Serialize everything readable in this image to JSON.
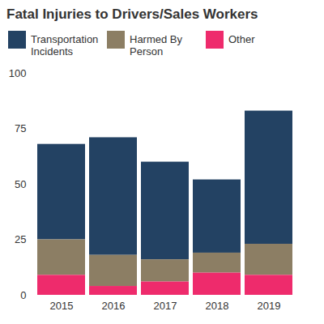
{
  "chart_data": {
    "type": "bar",
    "title": "Fatal Injuries to Drivers/Sales Workers",
    "categories": [
      "2015",
      "2016",
      "2017",
      "2018",
      "2019"
    ],
    "series": [
      {
        "name": "Transportation Incidents",
        "color": "#234263",
        "values": [
          43,
          53,
          44,
          33,
          60
        ]
      },
      {
        "name": "Harmed By Person",
        "color": "#8c7e64",
        "values": [
          16,
          14,
          10,
          9,
          14
        ]
      },
      {
        "name": "Other",
        "color": "#ee2b6c",
        "values": [
          9,
          4,
          6,
          10,
          9
        ]
      }
    ],
    "ylim": [
      0,
      100
    ],
    "yticks": [
      0,
      25,
      50,
      75,
      100
    ],
    "stacked": true,
    "grid": false,
    "legend": "top"
  }
}
